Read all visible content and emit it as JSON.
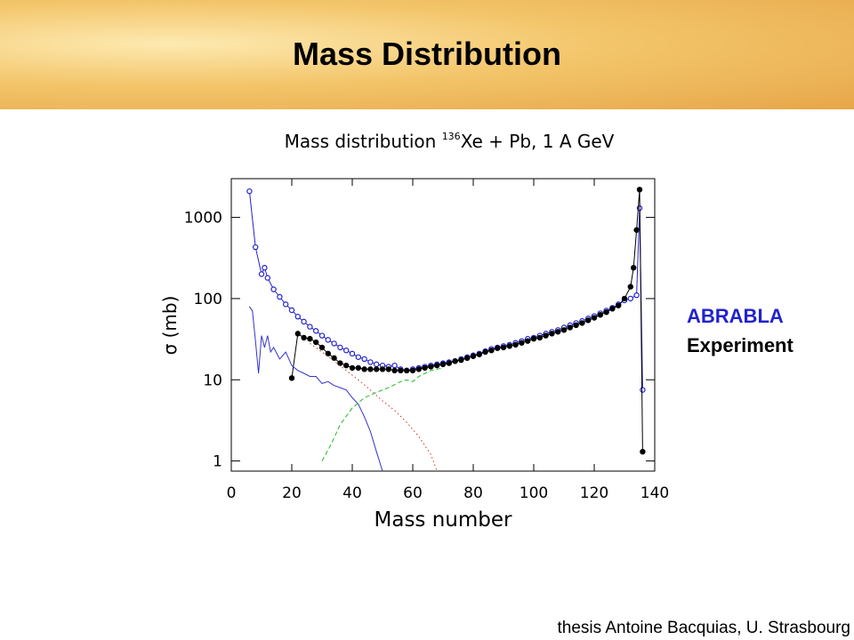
{
  "slide_title": "Mass Distribution",
  "credit": "thesis Antoine Bacquias, U. Strasbourg",
  "chart_data": {
    "type": "line",
    "title_parts": [
      "Mass distribution ",
      "136",
      "Xe + Pb, 1 A GeV"
    ],
    "xlabel": "Mass number",
    "ylabel": "σ (mb)",
    "xlim": [
      0,
      140
    ],
    "xticks": [
      0,
      20,
      40,
      60,
      80,
      100,
      120,
      140
    ],
    "ylim": [
      0.75,
      3000
    ],
    "yticks": [
      1,
      10,
      100,
      1000
    ],
    "log_y": true,
    "legend": "right",
    "series": [
      {
        "name": "ABRABLA",
        "color": "#2222cc",
        "marker": "open-circle",
        "dash": "solid",
        "x": [
          6,
          8,
          10,
          11,
          12,
          14,
          16,
          18,
          20,
          22,
          24,
          26,
          28,
          30,
          32,
          34,
          36,
          38,
          40,
          42,
          44,
          46,
          48,
          50,
          52,
          54,
          56,
          58,
          60,
          62,
          64,
          66,
          68,
          70,
          72,
          74,
          76,
          78,
          80,
          82,
          84,
          86,
          88,
          90,
          92,
          94,
          96,
          98,
          100,
          102,
          104,
          106,
          108,
          110,
          112,
          114,
          116,
          118,
          120,
          122,
          124,
          126,
          128,
          130,
          132,
          134,
          135,
          136
        ],
        "values": [
          2100,
          430,
          200,
          240,
          180,
          130,
          105,
          85,
          72,
          60,
          52,
          45,
          40,
          35,
          31,
          28,
          25,
          23,
          21,
          19,
          18,
          16.5,
          15.5,
          15,
          14.5,
          15,
          13.5,
          13,
          13.5,
          14,
          14.5,
          15,
          15.5,
          16,
          16.5,
          17,
          18,
          19,
          20,
          21,
          22.5,
          24,
          25,
          26,
          27,
          28.5,
          30,
          32,
          33,
          35,
          37,
          39,
          41,
          44,
          47,
          50,
          53,
          57,
          61,
          66,
          71,
          77,
          85,
          95,
          100,
          110,
          1300,
          7.5
        ]
      },
      {
        "name": "Experiment",
        "color": "#000000",
        "marker": "filled-circle",
        "dash": "solid",
        "x": [
          20,
          22,
          24,
          26,
          28,
          30,
          32,
          34,
          36,
          38,
          40,
          42,
          44,
          46,
          48,
          50,
          52,
          54,
          56,
          58,
          60,
          62,
          64,
          66,
          68,
          70,
          72,
          74,
          76,
          78,
          80,
          82,
          84,
          86,
          88,
          90,
          92,
          94,
          96,
          98,
          100,
          102,
          104,
          106,
          108,
          110,
          112,
          114,
          116,
          118,
          120,
          122,
          124,
          126,
          128,
          130,
          132,
          133,
          134,
          135,
          136
        ],
        "values": [
          10.5,
          37,
          33,
          32,
          29,
          25,
          21,
          18.5,
          16,
          15,
          14,
          14,
          13.5,
          13.5,
          13.5,
          13.5,
          13.5,
          13,
          13,
          13,
          13,
          13.5,
          14,
          14.5,
          15,
          15.5,
          16,
          17,
          17.5,
          18.5,
          19.5,
          20.5,
          22,
          23,
          24.5,
          25,
          26,
          27,
          28.5,
          30,
          32,
          33,
          35,
          37,
          39,
          41,
          44,
          47,
          50,
          54,
          58,
          63,
          68,
          75,
          82,
          100,
          140,
          240,
          700,
          2200,
          1.3
        ]
      },
      {
        "color": "#3333cc",
        "marker": "none",
        "dash": "solid",
        "x": [
          6,
          7,
          8,
          9,
          10,
          11,
          12,
          13,
          14,
          16,
          18,
          20,
          22,
          24,
          26,
          28,
          30,
          32,
          34,
          36,
          38,
          40,
          42,
          44,
          46,
          48,
          50
        ],
        "values": [
          80,
          70,
          30,
          12,
          35,
          25,
          35,
          22,
          25,
          18,
          22,
          15,
          13,
          12,
          11,
          11,
          9,
          9.5,
          8.5,
          8,
          7.5,
          6,
          5,
          3.5,
          2.3,
          1.3,
          0.75
        ]
      },
      {
        "color": "#cc3322",
        "marker": "none",
        "dash": "dotted",
        "x": [
          26,
          30,
          34,
          38,
          42,
          46,
          50,
          54,
          58,
          62,
          66,
          68
        ],
        "values": [
          28,
          22,
          17,
          13,
          10,
          7.5,
          5.5,
          4.2,
          3,
          2,
          1.2,
          0.75
        ]
      },
      {
        "color": "#22bb22",
        "marker": "none",
        "dash": "dashed",
        "x": [
          30,
          33,
          36,
          40,
          44,
          48,
          52,
          56,
          58,
          60,
          62,
          66,
          70
        ],
        "values": [
          1,
          1.6,
          2.8,
          4.5,
          6,
          7,
          8,
          9.5,
          10,
          9.5,
          11,
          13,
          14
        ]
      }
    ]
  }
}
